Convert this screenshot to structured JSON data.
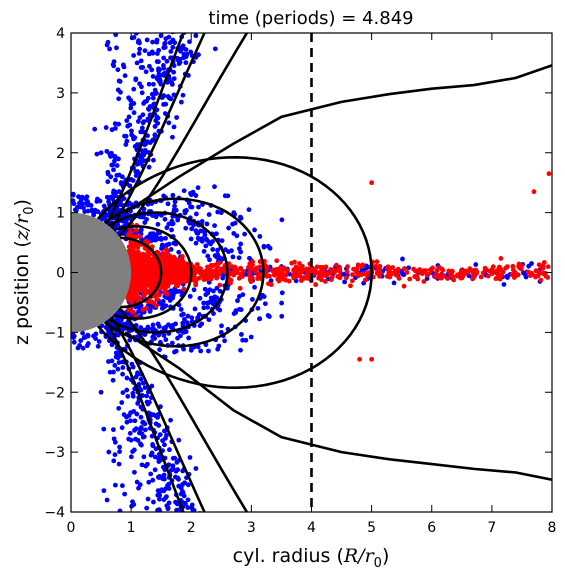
{
  "chart_data": {
    "type": "scatter",
    "title": "time (periods) = 4.849",
    "xlabel_prefix": "cyl. radius (",
    "xlabel_math": "R/r",
    "xlabel_sub": "0",
    "xlabel_suffix": ")",
    "ylabel_prefix": "z position (",
    "ylabel_math": "z/r",
    "ylabel_sub": "0",
    "ylabel_suffix": ")",
    "xlim": [
      0,
      8
    ],
    "ylim": [
      -4,
      4
    ],
    "x_ticks": [
      0,
      1,
      2,
      3,
      4,
      5,
      6,
      7,
      8
    ],
    "y_ticks": [
      -4,
      -3,
      -2,
      -1,
      0,
      1,
      2,
      3,
      4
    ],
    "x_tick_labels": [
      "0",
      "1",
      "2",
      "3",
      "4",
      "5",
      "6",
      "7",
      "8"
    ],
    "y_tick_labels": [
      "−4",
      "−3",
      "−2",
      "−1",
      "0",
      "1",
      "2",
      "3",
      "4"
    ],
    "grid": false,
    "legend": "none",
    "colors": {
      "blue_particles": "#0000ff",
      "red_particles": "#ff0000",
      "field_lines": "#000000",
      "star": "#808080",
      "dashed_line": "#000000"
    },
    "star_radius": 1.0,
    "vertical_dashed_line_x": 4,
    "closed_field_line_equatorial_radii": [
      1.5,
      2.0,
      2.6,
      3.2,
      5.0
    ],
    "open_field_line_base_latitudes_deg": [
      54,
      48,
      37
    ],
    "outer_open_field_line_upper": [
      [
        0.9,
        1.0
      ],
      [
        1.8,
        1.6
      ],
      [
        2.7,
        2.15
      ],
      [
        3.5,
        2.6
      ],
      [
        4.5,
        2.85
      ],
      [
        5.3,
        2.98
      ],
      [
        6.0,
        3.07
      ],
      [
        6.7,
        3.13
      ],
      [
        7.4,
        3.25
      ],
      [
        8.0,
        3.46
      ]
    ],
    "outer_open_field_line_lower": [
      [
        0.9,
        -1.0
      ],
      [
        1.8,
        -1.6
      ],
      [
        2.7,
        -2.3
      ],
      [
        3.5,
        -2.75
      ],
      [
        4.5,
        -3.0
      ],
      [
        5.3,
        -3.12
      ],
      [
        6.0,
        -3.2
      ],
      [
        6.7,
        -3.28
      ],
      [
        7.4,
        -3.34
      ],
      [
        8.0,
        -3.46
      ]
    ],
    "blue_particle_count_estimate": 2000,
    "red_particle_count_estimate": 1600,
    "blue_particles_sample": [
      [
        0.6,
        3.8
      ],
      [
        0.8,
        3.2
      ],
      [
        1.0,
        2.8
      ],
      [
        1.2,
        2.5
      ],
      [
        0.5,
        2.0
      ],
      [
        0.7,
        1.8
      ],
      [
        1.1,
        3.5
      ],
      [
        0.9,
        1.5
      ],
      [
        1.5,
        1.2
      ],
      [
        2.0,
        1.3
      ],
      [
        2.5,
        1.0
      ],
      [
        2.3,
        0.5
      ],
      [
        1.7,
        0.6
      ],
      [
        2.8,
        0.4
      ],
      [
        3.0,
        0.2
      ],
      [
        3.5,
        0.1
      ],
      [
        4.0,
        0.05
      ],
      [
        4.4,
        0.1
      ],
      [
        5.0,
        0.0
      ],
      [
        6.1,
        -0.1
      ],
      [
        7.2,
        -0.2
      ],
      [
        7.8,
        -0.15
      ],
      [
        0.6,
        -3.8
      ],
      [
        0.8,
        -3.2
      ],
      [
        1.0,
        -2.8
      ],
      [
        1.2,
        -2.5
      ],
      [
        0.5,
        -2.0
      ],
      [
        0.7,
        -1.8
      ],
      [
        1.1,
        -3.5
      ],
      [
        0.9,
        -1.5
      ],
      [
        1.5,
        -1.2
      ],
      [
        2.0,
        -1.3
      ],
      [
        2.5,
        -1.0
      ],
      [
        2.3,
        -0.5
      ],
      [
        1.7,
        -0.6
      ],
      [
        2.8,
        -0.4
      ]
    ],
    "red_particles_sample": [
      [
        1.0,
        0.2
      ],
      [
        1.2,
        0.0
      ],
      [
        1.5,
        -0.1
      ],
      [
        1.8,
        0.1
      ],
      [
        2.2,
        0.0
      ],
      [
        2.6,
        0.05
      ],
      [
        3.0,
        0.1
      ],
      [
        3.4,
        0.0
      ],
      [
        3.8,
        0.15
      ],
      [
        4.2,
        -0.05
      ],
      [
        4.6,
        0.1
      ],
      [
        5.0,
        1.5
      ],
      [
        5.0,
        -1.45
      ],
      [
        4.8,
        -1.45
      ],
      [
        5.4,
        0.0
      ],
      [
        5.8,
        0.05
      ],
      [
        6.2,
        -0.05
      ],
      [
        6.6,
        0.0
      ],
      [
        7.0,
        0.05
      ],
      [
        7.4,
        -0.05
      ],
      [
        7.7,
        1.35
      ],
      [
        7.95,
        1.65
      ]
    ]
  }
}
